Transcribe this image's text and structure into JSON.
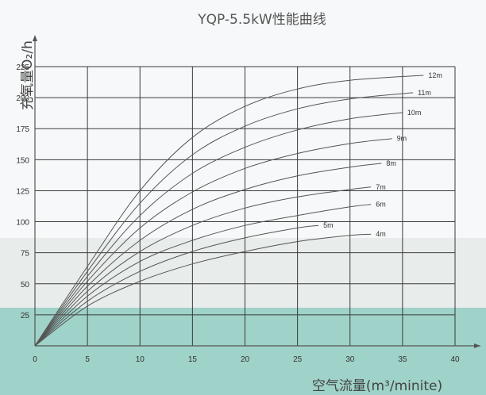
{
  "chart_data": {
    "type": "line",
    "title": "YQP-5.5kW性能曲线",
    "xlabel": "空气流量(m³/minite)",
    "ylabel": "充氧量O₂/h",
    "xlim": [
      0,
      40
    ],
    "ylim": [
      0,
      225
    ],
    "x_ticks": [
      "0",
      "5",
      "10",
      "15",
      "20",
      "25",
      "30",
      "35",
      "40"
    ],
    "y_ticks": [
      "25",
      "50",
      "75",
      "100",
      "125",
      "150",
      "175",
      "200",
      "225"
    ],
    "grid": true,
    "series": [
      {
        "name": "4m",
        "points": [
          [
            0,
            0
          ],
          [
            5,
            32
          ],
          [
            10,
            52
          ],
          [
            15,
            66
          ],
          [
            20,
            76
          ],
          [
            25,
            84
          ],
          [
            30,
            89
          ],
          [
            32,
            90
          ]
        ]
      },
      {
        "name": "5m",
        "points": [
          [
            0,
            0
          ],
          [
            5,
            36
          ],
          [
            10,
            60
          ],
          [
            15,
            76
          ],
          [
            20,
            87
          ],
          [
            25,
            95
          ],
          [
            27,
            97
          ]
        ]
      },
      {
        "name": "6m",
        "points": [
          [
            0,
            0
          ],
          [
            5,
            40
          ],
          [
            10,
            68
          ],
          [
            15,
            85
          ],
          [
            20,
            97
          ],
          [
            25,
            105
          ],
          [
            30,
            112
          ],
          [
            32,
            114
          ]
        ]
      },
      {
        "name": "7m",
        "points": [
          [
            0,
            0
          ],
          [
            5,
            44
          ],
          [
            10,
            76
          ],
          [
            15,
            97
          ],
          [
            20,
            111
          ],
          [
            25,
            120
          ],
          [
            30,
            126
          ],
          [
            32,
            128
          ]
        ]
      },
      {
        "name": "8m",
        "points": [
          [
            0,
            0
          ],
          [
            5,
            48
          ],
          [
            10,
            85
          ],
          [
            15,
            110
          ],
          [
            20,
            126
          ],
          [
            25,
            137
          ],
          [
            30,
            144
          ],
          [
            33,
            147
          ]
        ]
      },
      {
        "name": "9m",
        "points": [
          [
            0,
            0
          ],
          [
            5,
            52
          ],
          [
            10,
            95
          ],
          [
            15,
            124
          ],
          [
            20,
            143
          ],
          [
            25,
            155
          ],
          [
            30,
            163
          ],
          [
            34,
            167
          ]
        ]
      },
      {
        "name": "10m",
        "points": [
          [
            0,
            0
          ],
          [
            5,
            56
          ],
          [
            10,
            105
          ],
          [
            15,
            139
          ],
          [
            20,
            160
          ],
          [
            25,
            174
          ],
          [
            30,
            183
          ],
          [
            35,
            188
          ]
        ]
      },
      {
        "name": "11m",
        "points": [
          [
            0,
            0
          ],
          [
            5,
            60
          ],
          [
            10,
            115
          ],
          [
            15,
            154
          ],
          [
            20,
            177
          ],
          [
            25,
            191
          ],
          [
            30,
            199
          ],
          [
            36,
            204
          ]
        ]
      },
      {
        "name": "12m",
        "points": [
          [
            0,
            0
          ],
          [
            5,
            64
          ],
          [
            10,
            125
          ],
          [
            15,
            168
          ],
          [
            20,
            193
          ],
          [
            25,
            207
          ],
          [
            30,
            214
          ],
          [
            37,
            218
          ]
        ]
      }
    ]
  }
}
